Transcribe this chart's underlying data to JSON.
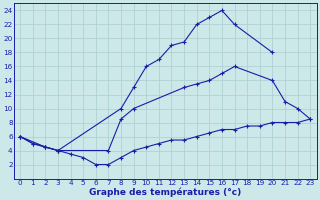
{
  "title": "Graphe des températures (°c)",
  "line_max": {
    "x": [
      0,
      1,
      2,
      3,
      8,
      9,
      10,
      11,
      12,
      13,
      14,
      15,
      16,
      17,
      20
    ],
    "y": [
      6,
      5,
      4.5,
      4,
      10,
      13,
      16,
      17,
      19,
      19.5,
      22,
      23,
      24,
      22,
      18
    ]
  },
  "line_mid": {
    "x": [
      0,
      2,
      3,
      7,
      8,
      9,
      13,
      14,
      15,
      16,
      17,
      20,
      21,
      22,
      23
    ],
    "y": [
      6,
      4.5,
      4,
      4,
      8.5,
      10,
      13,
      13.5,
      14,
      15,
      16,
      14,
      11,
      10,
      8.5
    ]
  },
  "line_min": {
    "x": [
      0,
      1,
      2,
      3,
      4,
      5,
      6,
      7,
      8,
      9,
      10,
      11,
      12,
      13,
      14,
      15,
      16,
      17,
      18,
      19,
      20,
      21,
      22,
      23
    ],
    "y": [
      6,
      5,
      4.5,
      4,
      3.5,
      3,
      2,
      2,
      3,
      4,
      4.5,
      5,
      5.5,
      5.5,
      6,
      6.5,
      7,
      7,
      7.5,
      7.5,
      8,
      8,
      8,
      8.5
    ]
  },
  "line_color": "#1c1caa",
  "bg_color": "#cce8e8",
  "grid_color": "#aacece",
  "ylim": [
    0,
    25
  ],
  "xlim": [
    -0.5,
    23.5
  ],
  "yticks": [
    2,
    4,
    6,
    8,
    10,
    12,
    14,
    16,
    18,
    20,
    22,
    24
  ],
  "xticks": [
    0,
    1,
    2,
    3,
    4,
    5,
    6,
    7,
    8,
    9,
    10,
    11,
    12,
    13,
    14,
    15,
    16,
    17,
    18,
    19,
    20,
    21,
    22,
    23
  ],
  "tick_fontsize": 5.2,
  "xlabel_fontsize": 6.5
}
